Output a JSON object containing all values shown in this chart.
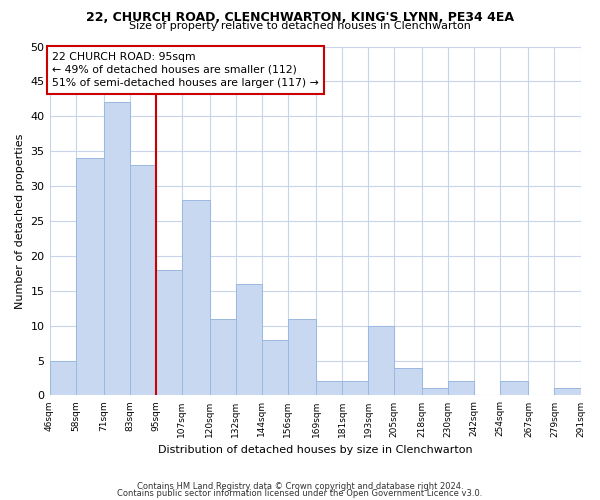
{
  "title1": "22, CHURCH ROAD, CLENCHWARTON, KING'S LYNN, PE34 4EA",
  "title2": "Size of property relative to detached houses in Clenchwarton",
  "xlabel": "Distribution of detached houses by size in Clenchwarton",
  "ylabel": "Number of detached properties",
  "bin_edges": [
    46,
    58,
    71,
    83,
    95,
    107,
    120,
    132,
    144,
    156,
    169,
    181,
    193,
    205,
    218,
    230,
    242,
    254,
    267,
    279,
    291
  ],
  "bin_labels": [
    "46sqm",
    "58sqm",
    "71sqm",
    "83sqm",
    "95sqm",
    "107sqm",
    "120sqm",
    "132sqm",
    "144sqm",
    "156sqm",
    "169sqm",
    "181sqm",
    "193sqm",
    "205sqm",
    "218sqm",
    "230sqm",
    "242sqm",
    "254sqm",
    "267sqm",
    "279sqm",
    "291sqm"
  ],
  "counts": [
    5,
    34,
    42,
    33,
    18,
    28,
    11,
    16,
    8,
    11,
    2,
    2,
    10,
    4,
    1,
    2,
    0,
    2,
    0,
    1
  ],
  "bar_color": "#c8d8f0",
  "bar_edgecolor": "#9ab8e0",
  "vline_x": 95,
  "vline_color": "#cc0000",
  "annotation_line1": "22 CHURCH ROAD: 95sqm",
  "annotation_line2": "← 49% of detached houses are smaller (112)",
  "annotation_line3": "51% of semi-detached houses are larger (117) →",
  "ylim": [
    0,
    50
  ],
  "yticks": [
    0,
    5,
    10,
    15,
    20,
    25,
    30,
    35,
    40,
    45,
    50
  ],
  "footer1": "Contains HM Land Registry data © Crown copyright and database right 2024.",
  "footer2": "Contains public sector information licensed under the Open Government Licence v3.0.",
  "background_color": "#ffffff",
  "grid_color": "#c8d4e8"
}
